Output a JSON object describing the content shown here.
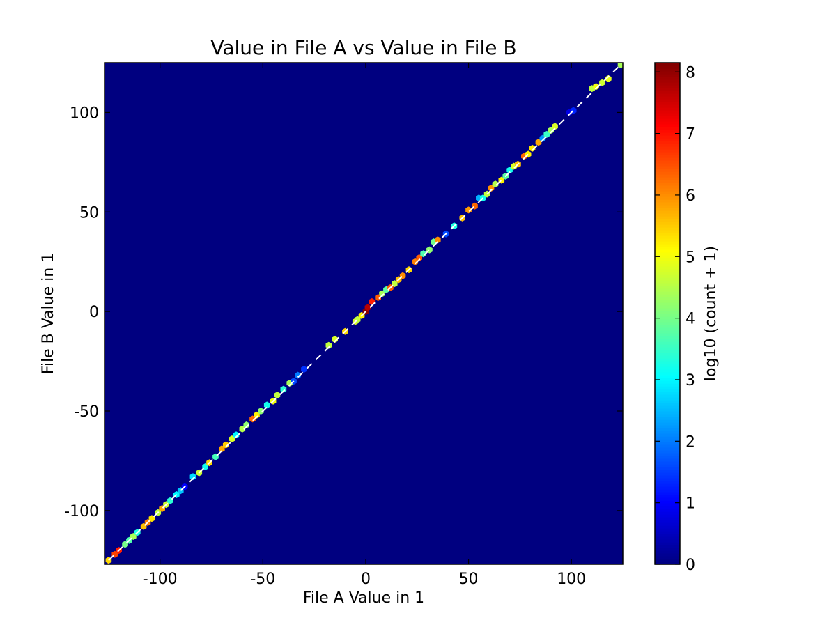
{
  "chart_data": {
    "type": "heatmap",
    "subtype": "hexbin",
    "title": "Value in File A vs Value in File B",
    "xlabel": "File A Value in 1",
    "ylabel": "File B Value in 1",
    "xlim": [
      -127,
      125
    ],
    "ylim": [
      -127,
      125
    ],
    "xticks": [
      -100,
      -50,
      0,
      50,
      100
    ],
    "yticks": [
      -100,
      -50,
      0,
      50,
      100
    ],
    "background_color": "#000080",
    "colormap": "jet",
    "colorbar": {
      "label": "log10 (count + 1)",
      "range": [
        0,
        8.15
      ],
      "ticks": [
        0,
        1,
        2,
        3,
        4,
        5,
        6,
        7,
        8
      ]
    },
    "reference_line": {
      "style": "dashed",
      "color": "#ffffff",
      "from": [
        -125,
        -125
      ],
      "to": [
        125,
        125
      ]
    },
    "grid": false,
    "points": [
      {
        "x": -125,
        "y": -125,
        "v": 5.4
      },
      {
        "x": -122,
        "y": -122,
        "v": 6.6
      },
      {
        "x": -120,
        "y": -120,
        "v": 6.9
      },
      {
        "x": -117,
        "y": -117,
        "v": 4.0
      },
      {
        "x": -115,
        "y": -115,
        "v": 3.7
      },
      {
        "x": -113,
        "y": -113,
        "v": 4.4
      },
      {
        "x": -111,
        "y": -111,
        "v": 3.3
      },
      {
        "x": -108,
        "y": -108,
        "v": 5.6
      },
      {
        "x": -106,
        "y": -106,
        "v": 6.1
      },
      {
        "x": -104,
        "y": -104,
        "v": 5.3
      },
      {
        "x": -101,
        "y": -101,
        "v": 4.6
      },
      {
        "x": -99,
        "y": -99,
        "v": 5.8
      },
      {
        "x": -97,
        "y": -97,
        "v": 4.7
      },
      {
        "x": -95,
        "y": -95,
        "v": 3.4
      },
      {
        "x": -92,
        "y": -92,
        "v": 3.0
      },
      {
        "x": -90,
        "y": -90,
        "v": 2.6
      },
      {
        "x": -88,
        "y": -88,
        "v": 1.0
      },
      {
        "x": -84,
        "y": -83,
        "v": 2.8
      },
      {
        "x": -81,
        "y": -81,
        "v": 4.7
      },
      {
        "x": -78,
        "y": -78,
        "v": 3.2
      },
      {
        "x": -76,
        "y": -76,
        "v": 5.4
      },
      {
        "x": -73,
        "y": -73,
        "v": 3.6
      },
      {
        "x": -70,
        "y": -69,
        "v": 5.8
      },
      {
        "x": -68,
        "y": -67,
        "v": 5.5
      },
      {
        "x": -65,
        "y": -64,
        "v": 4.8
      },
      {
        "x": -63,
        "y": -62,
        "v": 3.0
      },
      {
        "x": -60,
        "y": -59,
        "v": 4.5
      },
      {
        "x": -58,
        "y": -57,
        "v": 4.2
      },
      {
        "x": -55,
        "y": -54,
        "v": 6.3
      },
      {
        "x": -53,
        "y": -52,
        "v": 5.2
      },
      {
        "x": -51,
        "y": -50,
        "v": 4.2
      },
      {
        "x": -48,
        "y": -47,
        "v": 3.2
      },
      {
        "x": -45,
        "y": -45,
        "v": 5.0
      },
      {
        "x": -43,
        "y": -42,
        "v": 4.6
      },
      {
        "x": -40,
        "y": -39,
        "v": 3.4
      },
      {
        "x": -37,
        "y": -36,
        "v": 4.4
      },
      {
        "x": -35,
        "y": -35,
        "v": 1.6
      },
      {
        "x": -33,
        "y": -32,
        "v": 2.0
      },
      {
        "x": -30,
        "y": -29,
        "v": 1.4
      },
      {
        "x": -18,
        "y": -17,
        "v": 4.6
      },
      {
        "x": -15,
        "y": -14,
        "v": 4.8
      },
      {
        "x": -10,
        "y": -10,
        "v": 5.4
      },
      {
        "x": -5,
        "y": -5,
        "v": 4.8
      },
      {
        "x": -2,
        "y": -2,
        "v": 5.2
      },
      {
        "x": -4,
        "y": -4,
        "v": 4.6
      },
      {
        "x": 0,
        "y": 0,
        "v": 8.1
      },
      {
        "x": 1,
        "y": 2,
        "v": 7.7
      },
      {
        "x": 3,
        "y": 5,
        "v": 6.9
      },
      {
        "x": 6,
        "y": 7,
        "v": 6.4
      },
      {
        "x": 8,
        "y": 9,
        "v": 4.4
      },
      {
        "x": 10,
        "y": 11,
        "v": 3.8
      },
      {
        "x": 12,
        "y": 12,
        "v": 6.4
      },
      {
        "x": 14,
        "y": 14,
        "v": 4.6
      },
      {
        "x": 16,
        "y": 16,
        "v": 5.6
      },
      {
        "x": 18,
        "y": 18,
        "v": 6.0
      },
      {
        "x": 21,
        "y": 21,
        "v": 5.4
      },
      {
        "x": 24,
        "y": 25,
        "v": 6.1
      },
      {
        "x": 26,
        "y": 27,
        "v": 6.4
      },
      {
        "x": 28,
        "y": 29,
        "v": 3.7
      },
      {
        "x": 31,
        "y": 31,
        "v": 4.2
      },
      {
        "x": 33,
        "y": 35,
        "v": 4.0
      },
      {
        "x": 35,
        "y": 36,
        "v": 6.0
      },
      {
        "x": 39,
        "y": 39,
        "v": 1.6
      },
      {
        "x": 43,
        "y": 43,
        "v": 3.3
      },
      {
        "x": 47,
        "y": 47,
        "v": 5.6
      },
      {
        "x": 50,
        "y": 51,
        "v": 5.9
      },
      {
        "x": 53,
        "y": 53,
        "v": 6.3
      },
      {
        "x": 55,
        "y": 57,
        "v": 2.4
      },
      {
        "x": 57,
        "y": 57,
        "v": 3.2
      },
      {
        "x": 59,
        "y": 59,
        "v": 4.6
      },
      {
        "x": 61,
        "y": 62,
        "v": 6.0
      },
      {
        "x": 63,
        "y": 64,
        "v": 4.5
      },
      {
        "x": 66,
        "y": 66,
        "v": 5.2
      },
      {
        "x": 68,
        "y": 68,
        "v": 3.8
      },
      {
        "x": 70,
        "y": 71,
        "v": 3.2
      },
      {
        "x": 72,
        "y": 73,
        "v": 4.8
      },
      {
        "x": 74,
        "y": 74,
        "v": 5.6
      },
      {
        "x": 77,
        "y": 78,
        "v": 6.3
      },
      {
        "x": 79,
        "y": 79,
        "v": 5.2
      },
      {
        "x": 81,
        "y": 82,
        "v": 5.3
      },
      {
        "x": 84,
        "y": 85,
        "v": 5.8
      },
      {
        "x": 86,
        "y": 87,
        "v": 2.2
      },
      {
        "x": 88,
        "y": 89,
        "v": 3.5
      },
      {
        "x": 90,
        "y": 91,
        "v": 4.4
      },
      {
        "x": 92,
        "y": 93,
        "v": 4.8
      },
      {
        "x": 99,
        "y": 100,
        "v": 0.8
      },
      {
        "x": 101,
        "y": 101,
        "v": 1.3
      },
      {
        "x": 110,
        "y": 112,
        "v": 4.6
      },
      {
        "x": 112,
        "y": 113,
        "v": 5.0
      },
      {
        "x": 115,
        "y": 115,
        "v": 4.7
      },
      {
        "x": 118,
        "y": 117,
        "v": 4.9
      },
      {
        "x": 124,
        "y": 124,
        "v": 4.4
      }
    ]
  }
}
